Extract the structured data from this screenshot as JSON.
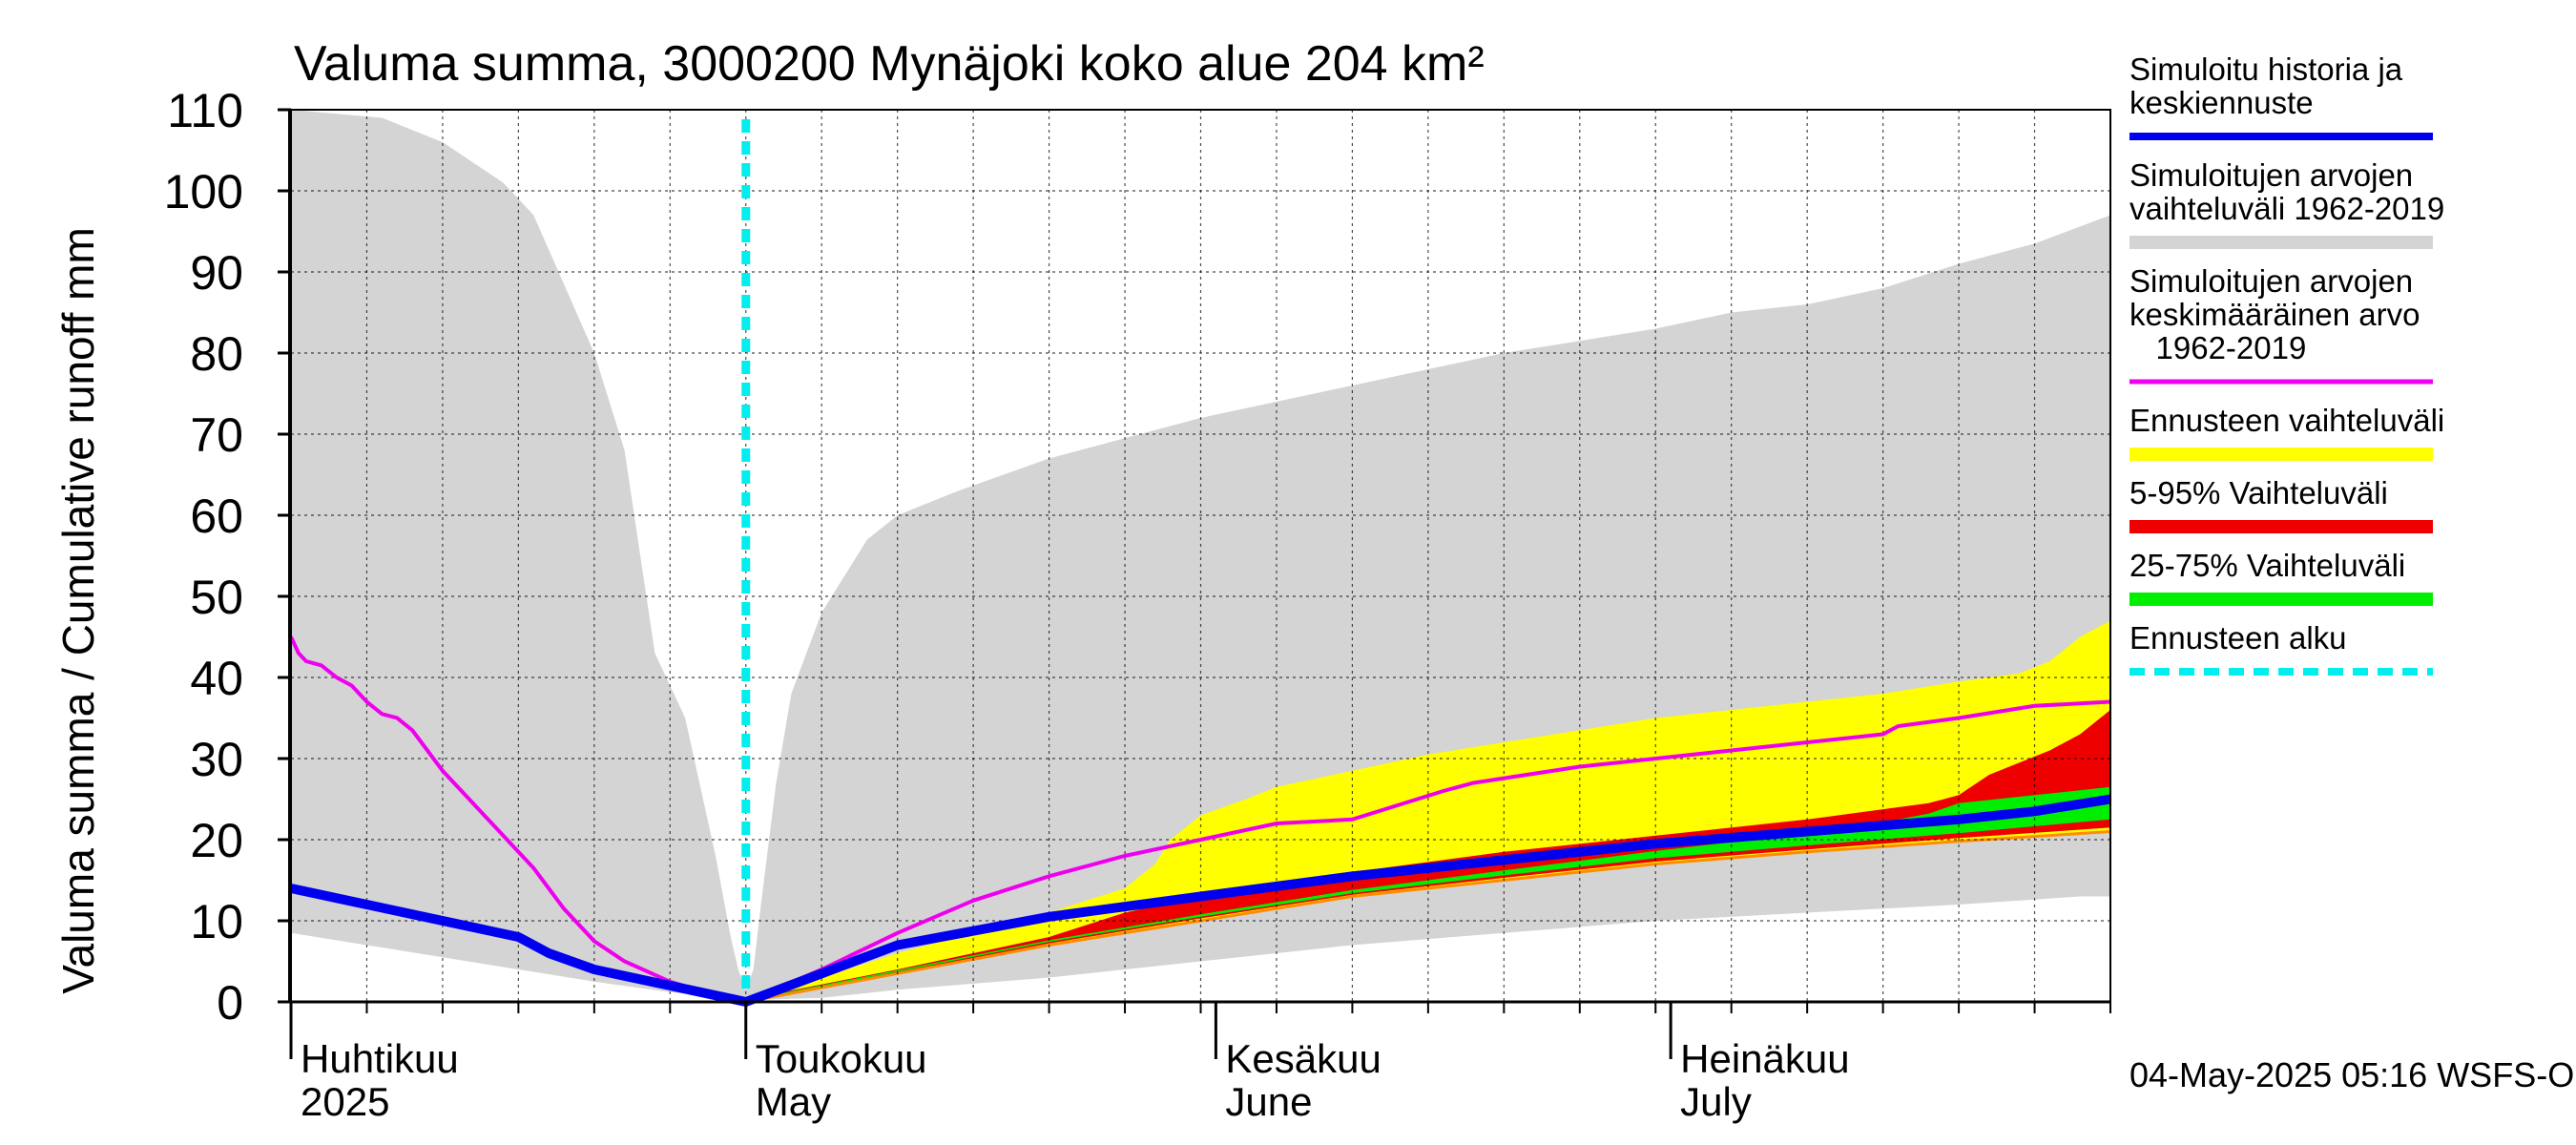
{
  "chart_data": {
    "type": "area",
    "title": "Valuma summa, 3000200 Mynäjoki koko alue 204 km²",
    "ylabel": "Valuma summa / Cumulative runoff    mm",
    "xlabel": "",
    "ylim": [
      0,
      110
    ],
    "yticks": [
      0,
      10,
      20,
      30,
      40,
      50,
      60,
      70,
      80,
      90,
      100,
      110
    ],
    "grid": true,
    "x_domain_days": [
      0,
      120
    ],
    "month_labels": [
      {
        "fi": "Huhtikuu",
        "en": "2025",
        "day": 0
      },
      {
        "fi": "Toukokuu",
        "en": "May",
        "day": 30
      },
      {
        "fi": "Kesäkuu",
        "en": "June",
        "day": 61
      },
      {
        "fi": "Heinäkuu",
        "en": "July",
        "day": 91
      }
    ],
    "forecast_start_day": 30,
    "legend": [
      {
        "label": "Simuloitu historia ja\nkeskiennuste",
        "color": "#0000ee",
        "style": "line"
      },
      {
        "label": "Simuloitujen arvojen\nvaihteluväli 1962-2019",
        "color": "#d4d4d4",
        "style": "band"
      },
      {
        "label": "Simuloitujen arvojen\nkeskimääräinen arvo\n   1962-2019",
        "color": "#ee00ee",
        "style": "line"
      },
      {
        "label": "Ennusteen vaihteluväli",
        "color": "#ffff00",
        "style": "band"
      },
      {
        "label": "5-95% Vaihteluväli",
        "color": "#ee0000",
        "style": "band"
      },
      {
        "label": "25-75% Vaihteluväli",
        "color": "#00ee00",
        "style": "band"
      },
      {
        "label": "Ennusteen alku",
        "color": "#00eeee",
        "style": "dashed"
      }
    ],
    "footer": "04-May-2025 05:16 WSFS-O",
    "series": [
      {
        "name": "hist_range_upper",
        "x": [
          0,
          6,
          10,
          14,
          16,
          20,
          22,
          24,
          26,
          28,
          29,
          29.5,
          30,
          30.5,
          31,
          32,
          33,
          35,
          38,
          40,
          44,
          50,
          60,
          70,
          80,
          90,
          95,
          100,
          105,
          110,
          115,
          120
        ],
        "y": [
          110,
          109,
          106,
          101,
          97,
          80,
          68,
          43,
          35,
          18,
          8,
          4,
          1.5,
          4,
          12,
          27,
          38,
          48,
          57,
          60,
          63,
          67,
          72,
          76,
          80,
          83,
          85,
          86,
          88,
          91,
          93.5,
          97
        ]
      },
      {
        "name": "hist_range_lower",
        "x": [
          0,
          5,
          10,
          15,
          20,
          25,
          30,
          35,
          40,
          50,
          60,
          70,
          80,
          90,
          100,
          110,
          118,
          120
        ],
        "y": [
          8.5,
          7,
          5.5,
          4,
          2.5,
          1.2,
          0.2,
          0.5,
          1.5,
          3,
          5,
          7,
          8.5,
          10,
          11,
          12,
          13,
          13
        ]
      },
      {
        "name": "fc_range_upper",
        "x": [
          30,
          35,
          40,
          45,
          50,
          55,
          57,
          58,
          60,
          63,
          65,
          70,
          75,
          80,
          85,
          90,
          95,
          100,
          105,
          110,
          114,
          116,
          118,
          120
        ],
        "y": [
          0.2,
          3,
          6,
          8.5,
          11,
          14,
          17,
          20,
          23,
          25,
          26.5,
          28.5,
          30.5,
          32,
          33.5,
          35,
          36,
          37,
          38,
          39.5,
          40.5,
          42,
          45,
          47
        ]
      },
      {
        "name": "fc_range_lower",
        "x": [
          30,
          40,
          50,
          60,
          70,
          80,
          90,
          100,
          110,
          120
        ],
        "y": [
          0,
          3.5,
          7,
          10,
          13,
          15,
          17,
          18.5,
          19.8,
          21
        ]
      },
      {
        "name": "p95",
        "x": [
          30,
          40,
          50,
          55,
          60,
          65,
          70,
          80,
          90,
          100,
          106,
          108,
          110,
          112,
          114,
          116,
          118,
          120
        ],
        "y": [
          0.3,
          4,
          8,
          11,
          13,
          14.5,
          16,
          18.5,
          20.5,
          22.5,
          24,
          24.5,
          25.5,
          28,
          29.5,
          31,
          33,
          36
        ]
      },
      {
        "name": "p05",
        "x": [
          30,
          40,
          50,
          60,
          70,
          80,
          90,
          100,
          110,
          120
        ],
        "y": [
          0,
          3.6,
          7.2,
          10.3,
          13.2,
          15.3,
          17.3,
          18.8,
          20.2,
          21.5
        ]
      },
      {
        "name": "p75",
        "x": [
          30,
          40,
          50,
          60,
          70,
          80,
          90,
          100,
          106,
          108,
          110,
          115,
          120
        ],
        "y": [
          0.2,
          3.9,
          7.6,
          10.8,
          13.8,
          16.2,
          18.6,
          20.8,
          22.5,
          23.2,
          24.5,
          25.5,
          26.5
        ]
      },
      {
        "name": "p25",
        "x": [
          30,
          40,
          50,
          60,
          70,
          80,
          90,
          100,
          110,
          120
        ],
        "y": [
          0.1,
          3.7,
          7.4,
          10.5,
          13.4,
          15.6,
          17.7,
          19.3,
          20.8,
          22.5
        ]
      },
      {
        "name": "Simuloitujen arvojen keskimääräinen arvo",
        "color": "#ee00ee",
        "x": [
          0,
          0.5,
          1,
          2,
          3,
          4,
          5,
          6,
          7,
          8,
          9,
          10,
          12,
          14,
          16,
          18,
          20,
          22,
          25,
          28,
          30,
          35,
          40,
          45,
          50,
          55,
          60,
          65,
          70,
          76,
          78,
          85,
          90,
          95,
          100,
          105,
          106,
          110,
          115,
          120
        ],
        "y": [
          45,
          43,
          42,
          41.5,
          40,
          39,
          37,
          35.5,
          35,
          33.5,
          31,
          28.5,
          24.5,
          20.5,
          16.5,
          11.5,
          7.5,
          5,
          2.5,
          0.8,
          0,
          4,
          8.5,
          12.5,
          15.5,
          18,
          20,
          22,
          22.5,
          26,
          27,
          29,
          30,
          31,
          32,
          33,
          34,
          35,
          36.5,
          37
        ]
      },
      {
        "name": "Simuloitu historia ja keskiennuste",
        "color": "#0000ee",
        "x": [
          0,
          5,
          10,
          15,
          17,
          20,
          25,
          30,
          35,
          40,
          50,
          60,
          70,
          80,
          90,
          100,
          110,
          115,
          120
        ],
        "y": [
          14,
          12,
          10,
          8,
          6,
          4,
          2,
          0,
          3.5,
          7,
          10.5,
          13,
          15.5,
          17.5,
          19.5,
          21,
          22.5,
          23.5,
          25
        ]
      }
    ]
  }
}
